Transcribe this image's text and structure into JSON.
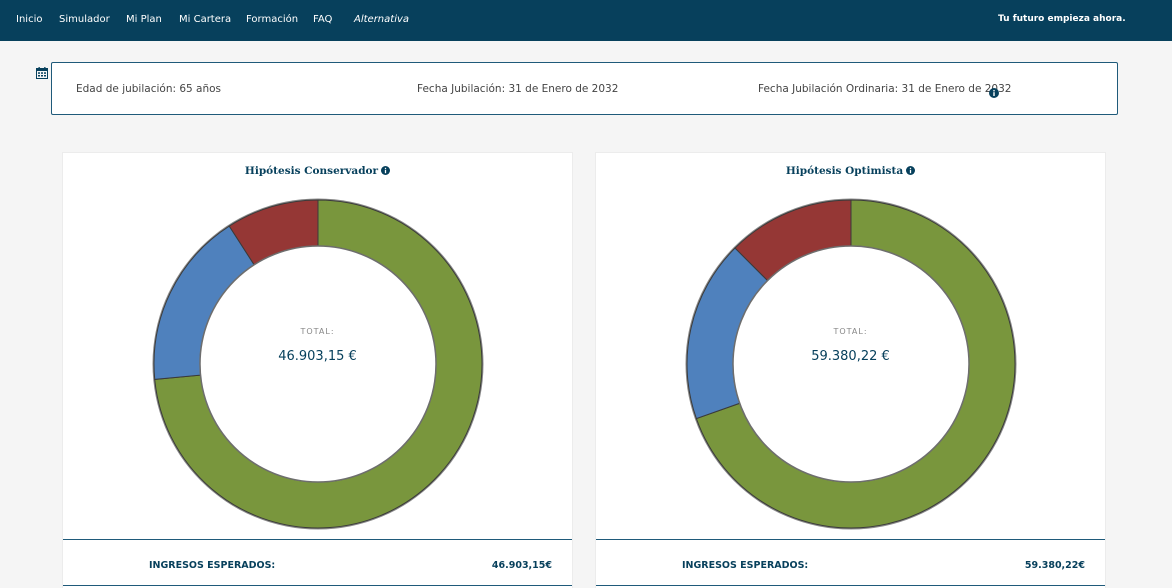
{
  "nav": {
    "items": [
      "Inicio",
      "Simulador",
      "Mi Plan",
      "Mi Cartera",
      "Formación",
      "FAQ",
      "Alternativa"
    ],
    "tagline": "Tu futuro empieza ahora."
  },
  "info": {
    "edad": "Edad de jubilación: 65 años",
    "fecha": "Fecha Jubilación: 31 de Enero de 2032",
    "fecha_ordinaria": "Fecha Jubilación Ordinaria: 31 de Enero de 2032",
    "icons": [
      "calendar-icon",
      "info-icon"
    ]
  },
  "colors": {
    "nav_bg": "#07405c",
    "green": "#79963d",
    "blue": "#4f81bd",
    "red": "#953735",
    "text_dark": "#07405c"
  },
  "cards": [
    {
      "title": "Hipótesis Conservador",
      "total_label": "TOTAL:",
      "total_value": "46.903,15 €",
      "row_label": "INGRESOS ESPERADOS:",
      "row_value": "46.903,15€"
    },
    {
      "title": "Hipótesis Optimista",
      "total_label": "TOTAL:",
      "total_value": "59.380,22 €",
      "row_label": "INGRESOS ESPERADOS:",
      "row_value": "59.380,22€"
    }
  ],
  "chart_data": [
    {
      "type": "pie",
      "title": "Hipótesis Conservador",
      "categories": [
        "green",
        "blue",
        "red"
      ],
      "values": [
        73.5,
        17.4,
        9.1
      ],
      "colors": [
        "#79963d",
        "#4f81bd",
        "#953735"
      ]
    },
    {
      "type": "pie",
      "title": "Hipótesis Optimista",
      "categories": [
        "green",
        "blue",
        "red"
      ],
      "values": [
        69.6,
        17.9,
        12.5
      ],
      "colors": [
        "#79963d",
        "#4f81bd",
        "#953735"
      ]
    }
  ]
}
